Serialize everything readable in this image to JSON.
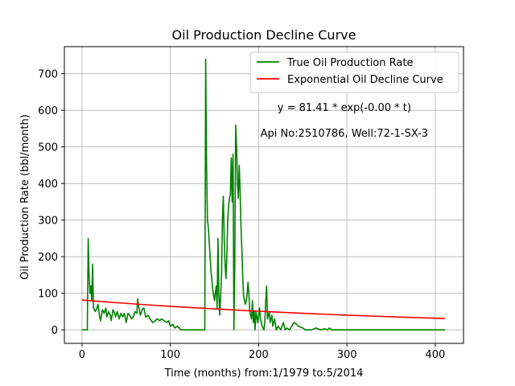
{
  "chart_data": {
    "type": "line",
    "title": "Oil Production Decline Curve",
    "xlabel": "Time (months) from:1/1979 to:5/2014",
    "ylabel": "Oil Production Rate (bbl/month)",
    "xlim": [
      -20,
      432
    ],
    "ylim": [
      -37,
      774
    ],
    "xticks": [
      0,
      100,
      200,
      300,
      400
    ],
    "yticks": [
      0,
      100,
      200,
      300,
      400,
      500,
      600,
      700
    ],
    "grid": true,
    "legend_position": "top-right",
    "colors": {
      "true_rate": "#008000",
      "decline": "#ff0000",
      "grid": "#b0b0b0",
      "axis": "#000000"
    },
    "annotations": [
      {
        "text": "y = 81.41 * exp(-0.00 * t)",
        "x": 297,
        "y": 598
      },
      {
        "text": "Api No:2510786, Well:72-1-SX-3",
        "x": 297,
        "y": 528
      }
    ],
    "series": [
      {
        "name": "True Oil Production Rate",
        "color": "#008000",
        "points": [
          [
            0,
            0
          ],
          [
            5,
            0
          ],
          [
            6,
            0
          ],
          [
            7,
            250
          ],
          [
            8,
            150
          ],
          [
            9,
            100
          ],
          [
            10,
            120
          ],
          [
            11,
            80
          ],
          [
            12,
            180
          ],
          [
            13,
            60
          ],
          [
            15,
            50
          ],
          [
            17,
            60
          ],
          [
            18,
            70
          ],
          [
            20,
            35
          ],
          [
            21,
            25
          ],
          [
            23,
            55
          ],
          [
            25,
            45
          ],
          [
            27,
            60
          ],
          [
            28,
            35
          ],
          [
            30,
            50
          ],
          [
            32,
            40
          ],
          [
            33,
            25
          ],
          [
            35,
            55
          ],
          [
            37,
            45
          ],
          [
            38,
            35
          ],
          [
            40,
            50
          ],
          [
            42,
            30
          ],
          [
            44,
            45
          ],
          [
            46,
            35
          ],
          [
            48,
            45
          ],
          [
            50,
            20
          ],
          [
            52,
            45
          ],
          [
            54,
            40
          ],
          [
            56,
            30
          ],
          [
            58,
            35
          ],
          [
            60,
            50
          ],
          [
            62,
            45
          ],
          [
            63,
            85
          ],
          [
            64,
            65
          ],
          [
            66,
            40
          ],
          [
            68,
            55
          ],
          [
            70,
            60
          ],
          [
            72,
            35
          ],
          [
            75,
            40
          ],
          [
            77,
            30
          ],
          [
            80,
            20
          ],
          [
            83,
            25
          ],
          [
            85,
            30
          ],
          [
            88,
            25
          ],
          [
            90,
            30
          ],
          [
            93,
            25
          ],
          [
            96,
            20
          ],
          [
            98,
            25
          ],
          [
            100,
            10
          ],
          [
            103,
            15
          ],
          [
            105,
            5
          ],
          [
            108,
            10
          ],
          [
            110,
            5
          ],
          [
            112,
            0
          ],
          [
            120,
            0
          ],
          [
            130,
            0
          ],
          [
            138,
            0
          ],
          [
            139,
            0
          ],
          [
            140,
            740
          ],
          [
            141,
            450
          ],
          [
            142,
            300
          ],
          [
            143,
            280
          ],
          [
            144,
            240
          ],
          [
            146,
            160
          ],
          [
            148,
            110
          ],
          [
            150,
            80
          ],
          [
            152,
            120
          ],
          [
            153,
            60
          ],
          [
            154,
            250
          ],
          [
            155,
            100
          ],
          [
            156,
            40
          ],
          [
            157,
            90
          ],
          [
            158,
            150
          ],
          [
            159,
            300
          ],
          [
            160,
            365
          ],
          [
            161,
            250
          ],
          [
            162,
            180
          ],
          [
            163,
            140
          ],
          [
            164,
            200
          ],
          [
            165,
            300
          ],
          [
            166,
            340
          ],
          [
            167,
            360
          ],
          [
            168,
            370
          ],
          [
            169,
            470
          ],
          [
            170,
            350
          ],
          [
            171,
            480
          ],
          [
            172,
            0
          ],
          [
            173,
            200
          ],
          [
            174,
            560
          ],
          [
            175,
            500
          ],
          [
            176,
            400
          ],
          [
            177,
            360
          ],
          [
            178,
            450
          ],
          [
            179,
            380
          ],
          [
            180,
            280
          ],
          [
            181,
            220
          ],
          [
            182,
            140
          ],
          [
            183,
            90
          ],
          [
            184,
            80
          ],
          [
            185,
            70
          ],
          [
            186,
            80
          ],
          [
            187,
            100
          ],
          [
            188,
            130
          ],
          [
            189,
            100
          ],
          [
            190,
            50
          ],
          [
            192,
            30
          ],
          [
            193,
            80
          ],
          [
            194,
            20
          ],
          [
            195,
            50
          ],
          [
            196,
            0
          ],
          [
            197,
            50
          ],
          [
            199,
            20
          ],
          [
            200,
            40
          ],
          [
            201,
            60
          ],
          [
            202,
            30
          ],
          [
            204,
            10
          ],
          [
            206,
            0
          ],
          [
            207,
            20
          ],
          [
            208,
            80
          ],
          [
            209,
            120
          ],
          [
            210,
            30
          ],
          [
            212,
            50
          ],
          [
            213,
            20
          ],
          [
            215,
            40
          ],
          [
            216,
            10
          ],
          [
            218,
            30
          ],
          [
            220,
            0
          ],
          [
            222,
            10
          ],
          [
            225,
            0
          ],
          [
            228,
            20
          ],
          [
            230,
            0
          ],
          [
            232,
            5
          ],
          [
            235,
            0
          ],
          [
            240,
            20
          ],
          [
            243,
            15
          ],
          [
            245,
            10
          ],
          [
            250,
            5
          ],
          [
            253,
            0
          ],
          [
            260,
            0
          ],
          [
            265,
            5
          ],
          [
            270,
            0
          ],
          [
            275,
            3
          ],
          [
            278,
            0
          ],
          [
            280,
            5
          ],
          [
            283,
            0
          ],
          [
            300,
            0
          ],
          [
            350,
            0
          ],
          [
            411,
            0
          ]
        ]
      },
      {
        "name": "Exponential Oil Decline Curve",
        "color": "#ff0000",
        "points": [
          [
            0,
            81.41
          ],
          [
            20,
            77.7
          ],
          [
            40,
            74.1
          ],
          [
            60,
            70.7
          ],
          [
            80,
            67.5
          ],
          [
            100,
            64.4
          ],
          [
            120,
            61.4
          ],
          [
            140,
            58.6
          ],
          [
            160,
            55.9
          ],
          [
            180,
            53.3
          ],
          [
            200,
            50.9
          ],
          [
            220,
            48.5
          ],
          [
            240,
            46.3
          ],
          [
            260,
            44.2
          ],
          [
            280,
            42.1
          ],
          [
            300,
            40.2
          ],
          [
            320,
            38.3
          ],
          [
            340,
            36.6
          ],
          [
            360,
            34.9
          ],
          [
            380,
            33.3
          ],
          [
            400,
            31.8
          ],
          [
            411,
            30.9
          ]
        ]
      }
    ]
  }
}
